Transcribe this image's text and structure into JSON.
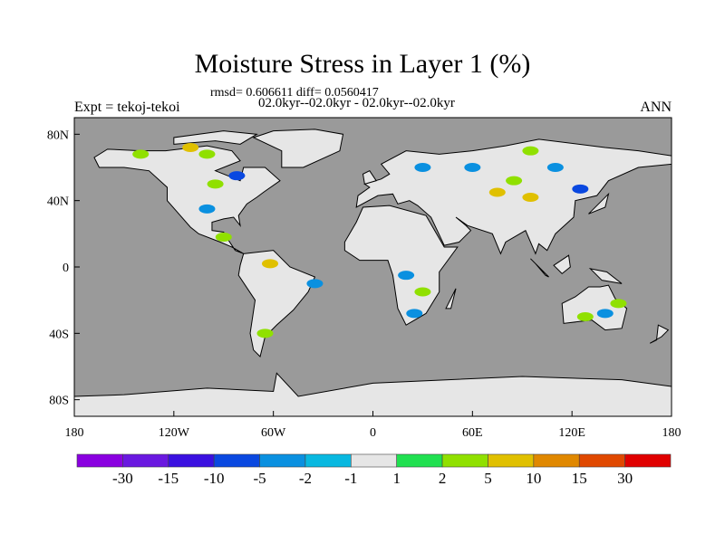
{
  "title": "Moisture Stress in Layer 1 (%)",
  "stats": "rmsd= 0.606611 diff= 0.0560417",
  "period": "02.0kyr--02.0kyr - 02.0kyr--02.0kyr",
  "experiment": "Expt = tekoj-tekoi",
  "season": "ANN",
  "colors": {
    "ocean": "#9a9a9a",
    "land": "#e6e6e6",
    "coast": "#000000"
  },
  "map": {
    "lon_range": [
      -180,
      180
    ],
    "lat_range": [
      -90,
      90
    ],
    "lon_ticks": [
      {
        "v": -180,
        "label": "180"
      },
      {
        "v": -120,
        "label": "120W"
      },
      {
        "v": -60,
        "label": "60W"
      },
      {
        "v": 0,
        "label": "0"
      },
      {
        "v": 60,
        "label": "60E"
      },
      {
        "v": 120,
        "label": "120E"
      },
      {
        "v": 180,
        "label": "180"
      }
    ],
    "lat_ticks": [
      {
        "v": 80,
        "label": "80N"
      },
      {
        "v": 40,
        "label": "40N"
      },
      {
        "v": 0,
        "label": "0"
      },
      {
        "v": -40,
        "label": "40S"
      },
      {
        "v": -80,
        "label": "80S"
      }
    ],
    "anomaly_patches": [
      {
        "lon": -140,
        "lat": 68,
        "level": "2"
      },
      {
        "lon": -110,
        "lat": 72,
        "level": "5"
      },
      {
        "lon": -100,
        "lat": 68,
        "level": "2"
      },
      {
        "lon": -82,
        "lat": 55,
        "level": "-5"
      },
      {
        "lon": -95,
        "lat": 50,
        "level": "2"
      },
      {
        "lon": -100,
        "lat": 35,
        "level": "-2"
      },
      {
        "lon": -90,
        "lat": 18,
        "level": "2"
      },
      {
        "lon": -62,
        "lat": 2,
        "level": "5"
      },
      {
        "lon": -35,
        "lat": -10,
        "level": "-2"
      },
      {
        "lon": -65,
        "lat": -40,
        "level": "2"
      },
      {
        "lon": 30,
        "lat": 60,
        "level": "-2"
      },
      {
        "lon": 60,
        "lat": 60,
        "level": "-2"
      },
      {
        "lon": 95,
        "lat": 70,
        "level": "2"
      },
      {
        "lon": 85,
        "lat": 52,
        "level": "2"
      },
      {
        "lon": 75,
        "lat": 45,
        "level": "5"
      },
      {
        "lon": 95,
        "lat": 42,
        "level": "5"
      },
      {
        "lon": 125,
        "lat": 47,
        "level": "-5"
      },
      {
        "lon": 110,
        "lat": 60,
        "level": "-2"
      },
      {
        "lon": 20,
        "lat": -5,
        "level": "-2"
      },
      {
        "lon": 30,
        "lat": -15,
        "level": "2"
      },
      {
        "lon": 25,
        "lat": -28,
        "level": "-2"
      },
      {
        "lon": 140,
        "lat": -28,
        "level": "-2"
      },
      {
        "lon": 128,
        "lat": -30,
        "level": "2"
      },
      {
        "lon": 148,
        "lat": -22,
        "level": "2"
      }
    ]
  },
  "colorbar": {
    "colors": [
      "#8a00e0",
      "#6a18e0",
      "#3a10e0",
      "#0a48e0",
      "#0a90e0",
      "#08b8e0",
      "#e6e6e6",
      "#20e050",
      "#90e000",
      "#e0c000",
      "#e08800",
      "#e04800",
      "#e00000"
    ],
    "labels": [
      "-30",
      "-15",
      "-10",
      "-5",
      "-2",
      "-1",
      "1",
      "2",
      "5",
      "10",
      "15",
      "30"
    ]
  }
}
